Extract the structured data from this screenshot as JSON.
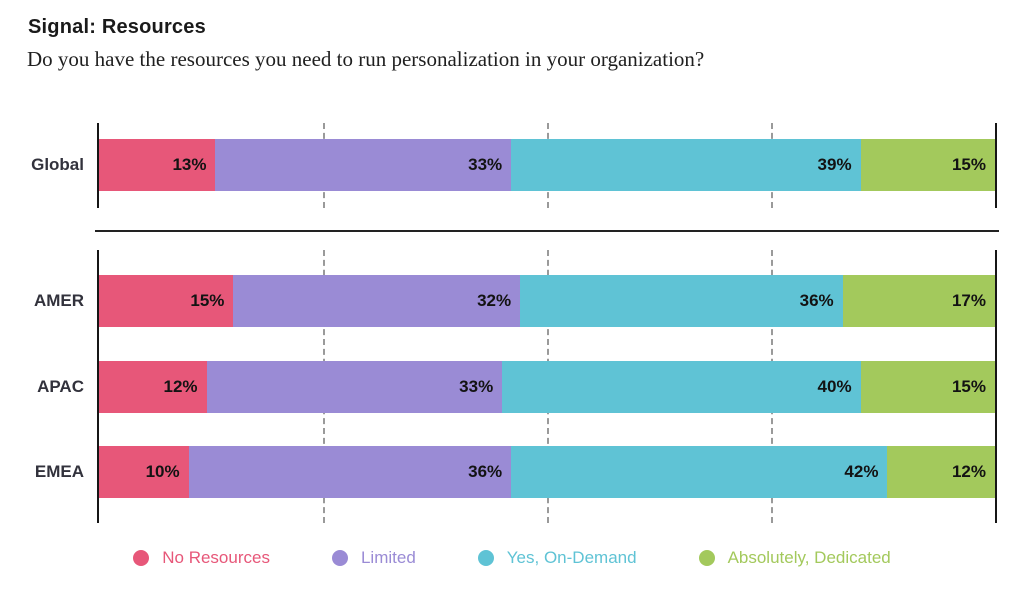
{
  "chart_data": {
    "type": "bar",
    "orientation": "horizontal-stacked",
    "title": "Signal: Resources",
    "question": "Do you have the resources you need to run personalization in your organization?",
    "categories": [
      "Global",
      "AMER",
      "APAC",
      "EMEA"
    ],
    "series": [
      {
        "name": "No Resources",
        "color": "#E75779",
        "values": [
          13,
          15,
          12,
          10
        ],
        "labels": [
          "13%",
          "15%",
          "12%",
          "10%"
        ]
      },
      {
        "name": "Limited",
        "color": "#9A8BD5",
        "values": [
          33,
          32,
          33,
          36
        ],
        "labels": [
          "33%",
          "32%",
          "33%",
          "36%"
        ]
      },
      {
        "name": "Yes, On-Demand",
        "color": "#5FC3D5",
        "values": [
          39,
          36,
          40,
          42
        ],
        "labels": [
          "39%",
          "36%",
          "40%",
          "42%"
        ]
      },
      {
        "name": "Absolutely, Dedicated",
        "color": "#A3C95C",
        "values": [
          15,
          17,
          15,
          12
        ],
        "labels": [
          "15%",
          "17%",
          "15%",
          "12%"
        ]
      }
    ],
    "xlim": [
      0,
      100
    ],
    "unit": "%",
    "gridlines_percent": [
      25,
      50,
      75
    ],
    "legend_position": "bottom",
    "grouping": "Global shown separately above AMER/APAC/EMEA group"
  }
}
